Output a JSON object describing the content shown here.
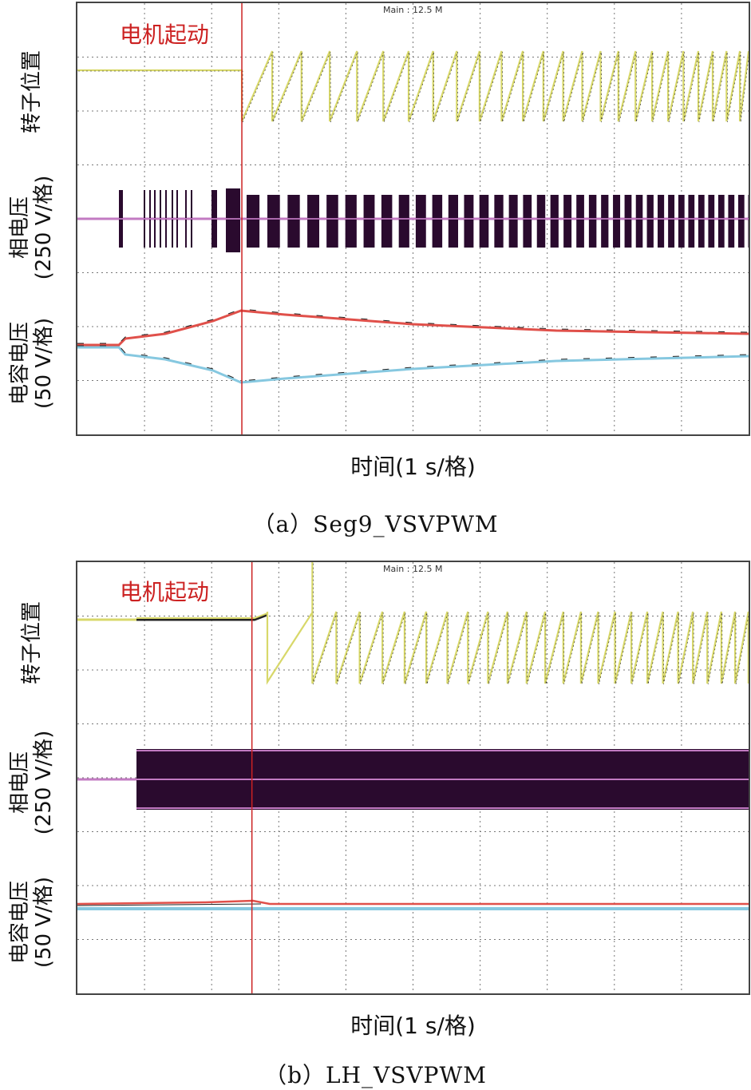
{
  "panels": [
    {
      "caption": "（a）Seg9_VSVPWM",
      "x_label": "时间(1 s/格)",
      "start_label": "电机起动",
      "main_label": "Main : 12.5 M",
      "y_labels": {
        "rotor": "转子位置",
        "phase_voltage": "相电压\n(250 V/格)",
        "cap_voltage": "电容电压\n(50 V/格)"
      }
    },
    {
      "caption": "（b）LH_VSVPWM",
      "x_label": "时间(1 s/格)",
      "start_label": "电机起动",
      "main_label": "Main : 12.5 M",
      "y_labels": {
        "rotor": "转子位置",
        "phase_voltage": "相电压\n(250 V/格)",
        "cap_voltage": "电容电压\n(50 V/格)"
      }
    }
  ],
  "colors": {
    "rotor": "#d8d86a",
    "phase": "#2a0a2e",
    "phase_ref": "#c27ac2",
    "cap_upper": "#e0504a",
    "cap_lower": "#86c8e0",
    "start_line": "#cc2222",
    "grid": "#777777"
  },
  "chart_data": [
    {
      "type": "line",
      "title": "",
      "xlabel": "时间(1 s/格)",
      "x_divisions": 10,
      "start_time_div": 2.45,
      "series": [
        {
          "name": "转子位置",
          "shape": "sawtooth, frequency increasing after start"
        },
        {
          "name": "相电压",
          "shape": "PWM pulse bursts, widening after start"
        },
        {
          "name": "电容电压",
          "shape": "upper rises to peak at start then decays; lower mirrors"
        }
      ]
    },
    {
      "type": "line",
      "title": "",
      "xlabel": "时间(1 s/格)",
      "x_divisions": 10,
      "start_time_div": 2.6,
      "series": [
        {
          "name": "转子位置",
          "shape": "sawtooth, frequency increasing after start"
        },
        {
          "name": "相电压",
          "shape": "continuous PWM band from 0.9 div"
        },
        {
          "name": "电容电压",
          "shape": "nearly flat, balanced"
        }
      ]
    }
  ]
}
